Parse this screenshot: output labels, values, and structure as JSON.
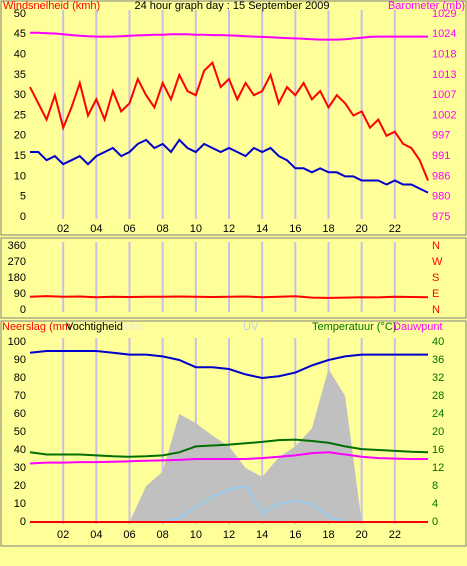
{
  "chart_data": [
    {
      "type": "line",
      "title": "24 hour graph day : 15 September 2009",
      "ylabel": "Windsnelheid (kmh)",
      "y2label": "Barometer (mb)",
      "ylabel_color": "#ff0000",
      "y2label_color": "#ff00ff",
      "ytick_color": "#000000",
      "y2tick_color": "#ff00ff",
      "grid": true,
      "xlim": [
        0,
        24
      ],
      "xticks": [
        {
          "value": 2,
          "label": "02"
        },
        {
          "value": 4,
          "label": "04"
        },
        {
          "value": 6,
          "label": "06"
        },
        {
          "value": 8,
          "label": "08"
        },
        10,
        12,
        14,
        16,
        18,
        20,
        22
      ],
      "ylim": [
        0,
        50
      ],
      "yticks": [
        0,
        5,
        10,
        15,
        20,
        25,
        30,
        35,
        40,
        45,
        50
      ],
      "y2lim": [
        975,
        1029
      ],
      "y2ticks": [
        975,
        {
          "value": 980.4,
          "label": "980"
        },
        {
          "value": 985.8,
          "label": "986"
        },
        {
          "value": 991.2,
          "label": "991"
        },
        {
          "value": 996.6,
          "label": "997"
        },
        1002,
        {
          "value": 1007.4,
          "label": "1007"
        },
        {
          "value": 1012.8,
          "label": "1013"
        },
        {
          "value": 1018.2,
          "label": "1018"
        },
        {
          "value": 1023.6,
          "label": "1024"
        },
        1029
      ],
      "x": [
        0,
        0.5,
        1,
        1.5,
        2,
        2.5,
        3,
        3.5,
        4,
        4.5,
        5,
        5.5,
        6,
        6.5,
        7,
        7.5,
        8,
        8.5,
        9,
        9.5,
        10,
        10.5,
        11,
        11.5,
        12,
        12.5,
        13,
        13.5,
        14,
        14.5,
        15,
        15.5,
        16,
        16.5,
        17,
        17.5,
        18,
        18.5,
        19,
        19.5,
        20,
        20.5,
        21,
        21.5,
        22,
        22.5,
        23,
        23.5,
        24
      ],
      "series": [
        {
          "color": "#ff00ff",
          "axis": "y2",
          "values": [
            1024,
            1024,
            1023.9,
            1023.8,
            1023.6,
            1023.4,
            1023.2,
            1023.1,
            1023,
            1023,
            1023,
            1023.1,
            1023.2,
            1023.3,
            1023.4,
            1023.5,
            1023.5,
            1023.6,
            1023.6,
            1023.6,
            1023.5,
            1023.5,
            1023.4,
            1023.4,
            1023.3,
            1023.2,
            1023.1,
            1023,
            1022.9,
            1022.8,
            1022.7,
            1022.6,
            1022.5,
            1022.4,
            1022.3,
            1022.2,
            1022.2,
            1022.2,
            1022.3,
            1022.5,
            1022.7,
            1022.9,
            1023,
            1023,
            1023,
            1023,
            1023,
            1023,
            1023
          ]
        },
        {
          "color": "#ff0000",
          "values": [
            32,
            28,
            24,
            30,
            22,
            27,
            33,
            25,
            29,
            24,
            31,
            26,
            28,
            34,
            30,
            27,
            33,
            29,
            35,
            31,
            30,
            36,
            38,
            32,
            34,
            29,
            33,
            30,
            31,
            35,
            28,
            32,
            30,
            33,
            29,
            31,
            27,
            30,
            28,
            25,
            26,
            22,
            24,
            20,
            21,
            18,
            17,
            14,
            9
          ]
        },
        {
          "color": "#0000cc",
          "values": [
            16,
            16,
            14,
            15,
            13,
            14,
            15,
            13,
            15,
            16,
            17,
            15,
            16,
            18,
            19,
            17,
            18,
            16,
            19,
            17,
            16,
            18,
            17,
            16,
            17,
            16,
            15,
            17,
            16,
            17,
            15,
            14,
            12,
            12,
            11,
            12,
            11,
            11,
            10,
            10,
            9,
            9,
            9,
            8,
            9,
            8,
            8,
            7,
            6
          ]
        }
      ]
    },
    {
      "type": "line",
      "ytick_color": "#000000",
      "y2tick_color": "#ff0000",
      "grid": true,
      "xlim": [
        0,
        24
      ],
      "xticks": [
        2,
        4,
        6,
        8,
        10,
        12,
        14,
        16,
        18,
        20,
        22
      ],
      "ylim": [
        0,
        360
      ],
      "yticks": [
        0,
        90,
        180,
        270,
        360
      ],
      "y2lim": [
        0,
        360
      ],
      "y2ticks": [
        {
          "value": 0,
          "label": "N"
        },
        {
          "value": 90,
          "label": "E"
        },
        {
          "value": 180,
          "label": "S"
        },
        {
          "value": 270,
          "label": "W"
        },
        {
          "value": 360,
          "label": "N"
        }
      ],
      "x": [
        0,
        1,
        2,
        3,
        4,
        5,
        6,
        7,
        8,
        9,
        10,
        11,
        12,
        13,
        14,
        15,
        16,
        17,
        18,
        19,
        20,
        21,
        22,
        23,
        24
      ],
      "series": [
        {
          "color": "#ff0000",
          "values": [
            75,
            78,
            74,
            76,
            72,
            74,
            73,
            75,
            74,
            76,
            75,
            73,
            74,
            76,
            72,
            75,
            77,
            70,
            68,
            70,
            72,
            71,
            74,
            73,
            72
          ]
        }
      ]
    },
    {
      "type": "line",
      "ytick_color": "#000000",
      "y2tick_color": "#007000",
      "grid": true,
      "xlim": [
        0,
        24
      ],
      "xticks": [
        {
          "value": 2,
          "label": "02"
        },
        {
          "value": 4,
          "label": "04"
        },
        {
          "value": 6,
          "label": "06"
        },
        {
          "value": 8,
          "label": "08"
        },
        10,
        12,
        14,
        16,
        18,
        20,
        22
      ],
      "ylim": [
        0,
        100
      ],
      "yticks": [
        0,
        10,
        20,
        30,
        40,
        50,
        60,
        70,
        80,
        90,
        100
      ],
      "y2lim": [
        0,
        40
      ],
      "y2ticks": [
        0,
        4,
        8,
        12,
        16,
        20,
        24,
        28,
        32,
        36,
        40
      ],
      "x": [
        0,
        1,
        2,
        3,
        4,
        5,
        6,
        7,
        8,
        9,
        10,
        11,
        12,
        13,
        14,
        15,
        16,
        17,
        18,
        19,
        20,
        21,
        22,
        23,
        24
      ],
      "series": [
        {
          "name": "Solar",
          "color": "#c0c0c0",
          "label_color": "#e8e8c8",
          "fill": true,
          "values": [
            0,
            0,
            0,
            0,
            0,
            0,
            0,
            20,
            28,
            60,
            55,
            48,
            42,
            30,
            25,
            36,
            42,
            52,
            85,
            70,
            0,
            0,
            0,
            0,
            0
          ]
        },
        {
          "name": "UV",
          "color": "#99ccee",
          "label_color": "#b8d0e8",
          "values": [
            0,
            0,
            0,
            0,
            0,
            0,
            0,
            0,
            0,
            2,
            8,
            14,
            18,
            20,
            5,
            10,
            12,
            10,
            3,
            0,
            0,
            0,
            0,
            0,
            0
          ]
        },
        {
          "name": "Neerslag (mm",
          "color": "#ff0000",
          "label_color": "#ff0000",
          "values": [
            0,
            0,
            0,
            0,
            0,
            0,
            0,
            0,
            0,
            0,
            0,
            0,
            0,
            0,
            0,
            0,
            0,
            0,
            0,
            0,
            0,
            0,
            0,
            0,
            0
          ]
        },
        {
          "name": "Dauwpunt",
          "color": "#ff00ff",
          "label_color": "#ff00ff",
          "axis": "y2",
          "values": [
            13,
            13.2,
            13.2,
            13.3,
            13.3,
            13.4,
            13.5,
            13.6,
            13.7,
            13.8,
            14,
            14,
            14,
            14,
            14.2,
            14.5,
            14.8,
            15.3,
            15.5,
            15,
            14.5,
            14.2,
            14.1,
            14,
            14
          ]
        },
        {
          "name": "Temperatuur (°C)",
          "color": "#007000",
          "label_color": "#007000",
          "axis": "y2",
          "values": [
            15.5,
            15,
            15,
            15,
            14.8,
            14.6,
            14.5,
            14.6,
            14.8,
            15.5,
            16.8,
            17,
            17.2,
            17.5,
            17.8,
            18.2,
            18.3,
            18,
            17.6,
            16.8,
            16.2,
            16,
            15.8,
            15.6,
            15.5
          ]
        },
        {
          "name": "Vochtigheid",
          "color": "#0000cc",
          "label_color": "#000000",
          "values": [
            94,
            95,
            95,
            95,
            95,
            94,
            93,
            93,
            92,
            90,
            86,
            86,
            85,
            82,
            80,
            81,
            83,
            87,
            90,
            92,
            93,
            93,
            93,
            93,
            93
          ]
        }
      ]
    }
  ]
}
